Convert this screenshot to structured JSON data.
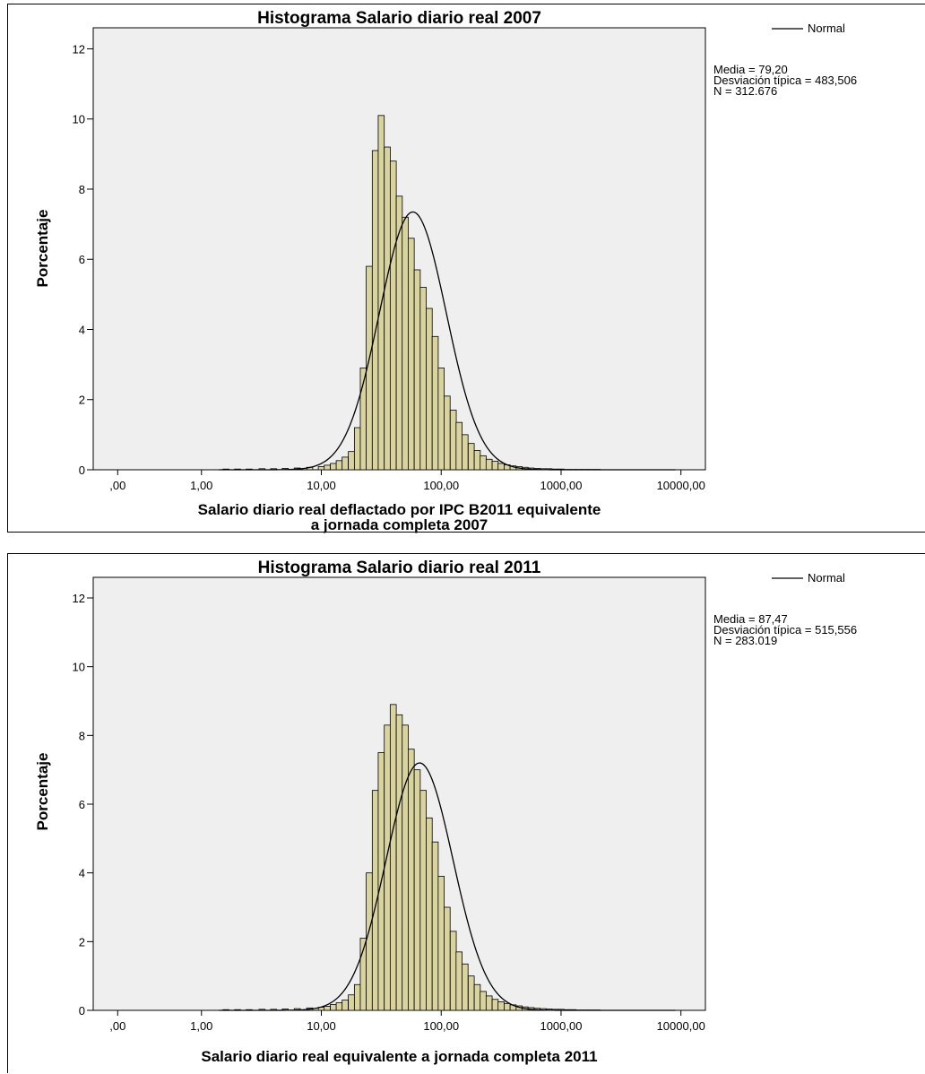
{
  "colors": {
    "bar_fill": "#d9d3a0",
    "plot_background": "#efefef",
    "curve": "#000000"
  },
  "chart_data": [
    {
      "type": "bar",
      "title": "Histograma Salario diario real 2007",
      "xlabel": [
        "Salario diario real deflactado por IPC B2011 equivalente",
        "a jornada completa 2007"
      ],
      "ylabel": "Porcentaje",
      "x_scale": "log",
      "x_ticks": [
        ",00",
        "1,00",
        "10,00",
        "100,00",
        "1000,00",
        "10000,00"
      ],
      "x_tick_values": [
        0.2,
        1,
        10,
        100,
        1000,
        10000
      ],
      "y_ticks": [
        0,
        2,
        4,
        6,
        8,
        10,
        12
      ],
      "ylim": [
        0,
        12.6
      ],
      "xlim": [
        0.125,
        16000
      ],
      "legend": {
        "label": "Normal",
        "placement": "top-right"
      },
      "stats": [
        "Media = 79,20",
        "Desviación típica = 483,506",
        "N = 312.676"
      ],
      "bins": {
        "x": [
          1.6,
          2,
          2.5,
          3.2,
          4,
          5,
          6.3,
          8,
          10,
          11.2,
          12.6,
          14.1,
          15.8,
          17.8,
          20,
          22.4,
          25.1,
          28.2,
          31.6,
          35.5,
          39.8,
          44.7,
          50.1,
          56.2,
          63.1,
          70.8,
          79.4,
          89.1,
          100,
          112,
          126,
          141,
          158,
          178,
          200,
          224,
          251,
          282,
          316,
          355,
          398,
          447,
          501,
          562,
          631,
          708,
          794,
          891,
          1000,
          1122,
          1259,
          1413,
          1585,
          1778,
          2000
        ],
        "values": [
          0.02,
          0.02,
          0.02,
          0.03,
          0.03,
          0.04,
          0.05,
          0.07,
          0.09,
          0.13,
          0.18,
          0.26,
          0.36,
          0.52,
          1.2,
          2.9,
          5.8,
          9.1,
          10.1,
          9.2,
          8.8,
          7.8,
          7.2,
          6.6,
          5.7,
          5.2,
          4.6,
          3.8,
          2.9,
          2.1,
          1.7,
          1.35,
          1.0,
          0.75,
          0.55,
          0.4,
          0.3,
          0.24,
          0.18,
          0.14,
          0.11,
          0.09,
          0.07,
          0.05,
          0.04,
          0.03,
          0.03,
          0.02,
          0.02,
          0.01,
          0.01,
          0.01,
          0.01,
          0.01,
          0.01
        ]
      },
      "normal_curve": {
        "peak": 7.35,
        "center": 58,
        "spread_log10": 0.28
      }
    },
    {
      "type": "bar",
      "title": "Histograma Salario diario real 2011",
      "xlabel": [
        "Salario diario real equivalente a jornada completa 2011"
      ],
      "ylabel": "Porcentaje",
      "x_scale": "log",
      "x_ticks": [
        ",00",
        "1,00",
        "10,00",
        "100,00",
        "1000,00",
        "10000,00"
      ],
      "x_tick_values": [
        0.2,
        1,
        10,
        100,
        1000,
        10000
      ],
      "y_ticks": [
        0,
        2,
        4,
        6,
        8,
        10,
        12
      ],
      "ylim": [
        0,
        12.6
      ],
      "xlim": [
        0.125,
        16000
      ],
      "legend": {
        "label": "Normal",
        "placement": "top-right"
      },
      "stats": [
        "Media = 87,47",
        "Desviación típica = 515,556",
        "N = 283.019"
      ],
      "bins": {
        "x": [
          1.6,
          2,
          2.5,
          3.2,
          4,
          5,
          6.3,
          8,
          10,
          11.2,
          12.6,
          14.1,
          15.8,
          17.8,
          20,
          22.4,
          25.1,
          28.2,
          31.6,
          35.5,
          39.8,
          44.7,
          50.1,
          56.2,
          63.1,
          70.8,
          79.4,
          89.1,
          100,
          112,
          126,
          141,
          158,
          178,
          200,
          224,
          251,
          282,
          316,
          355,
          398,
          447,
          501,
          562,
          631,
          708,
          794,
          891,
          1000,
          1122,
          1259,
          1413,
          1585,
          1778,
          2000
        ],
        "values": [
          0.02,
          0.02,
          0.02,
          0.03,
          0.03,
          0.04,
          0.05,
          0.07,
          0.09,
          0.12,
          0.17,
          0.22,
          0.3,
          0.45,
          0.75,
          2.1,
          4.0,
          6.4,
          7.5,
          8.3,
          8.9,
          8.6,
          8.3,
          7.6,
          7.0,
          6.4,
          5.6,
          4.9,
          3.9,
          3.0,
          2.3,
          1.7,
          1.35,
          1.0,
          0.75,
          0.55,
          0.42,
          0.32,
          0.25,
          0.2,
          0.16,
          0.13,
          0.1,
          0.08,
          0.06,
          0.05,
          0.04,
          0.03,
          0.03,
          0.02,
          0.02,
          0.01,
          0.01,
          0.01,
          0.01
        ]
      },
      "normal_curve": {
        "peak": 7.2,
        "center": 66,
        "spread_log10": 0.28
      }
    }
  ]
}
